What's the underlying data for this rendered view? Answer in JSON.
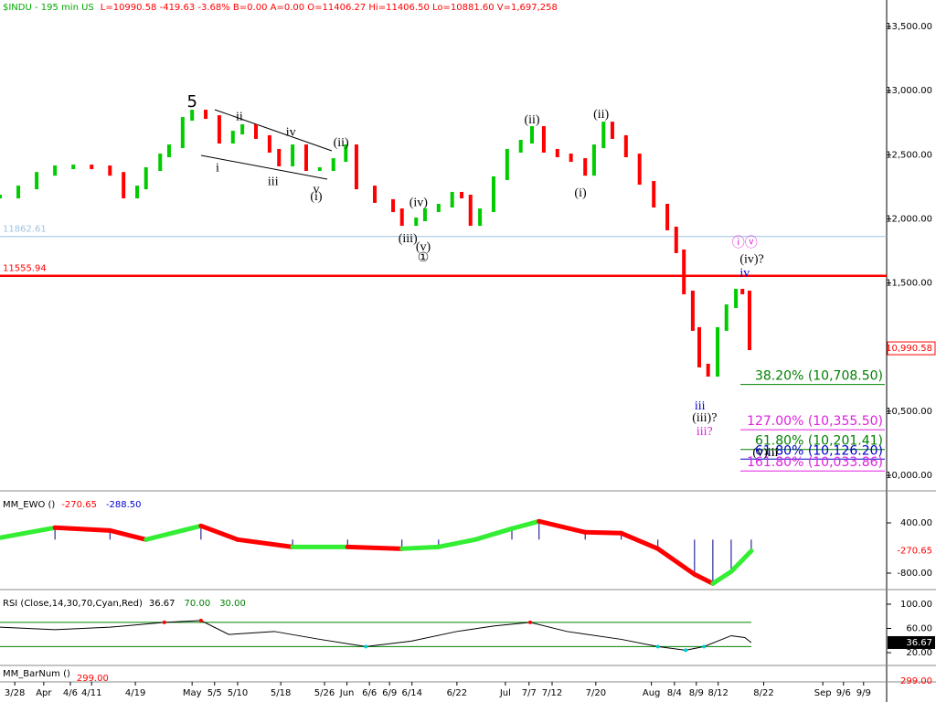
{
  "chart_data": [
    {
      "type": "price",
      "name": "$INDU - 195 min  US",
      "header": "L=10990.58 -419.63 -3.68%  B=0.00  A=0.00  O=11406.27  Hi=11406.50  Lo=10881.60  V=1,697,258",
      "xlim": [
        0,
        150
      ],
      "ylim": [
        9893,
        13707
      ],
      "xticks": [
        {
          "value": 2.5,
          "label": "3/28"
        },
        {
          "value": 7.4,
          "label": "Apr"
        },
        {
          "value": 11.9,
          "label": "4/6"
        },
        {
          "value": 15.5,
          "label": "4/11"
        },
        {
          "value": 22.9,
          "label": "4/19"
        },
        {
          "value": 32.5,
          "label": "May"
        },
        {
          "value": 36.3,
          "label": "5/5"
        },
        {
          "value": 40.2,
          "label": "5/10"
        },
        {
          "value": 47.5,
          "label": "5/18"
        },
        {
          "value": 54.9,
          "label": "5/26"
        },
        {
          "value": 58.7,
          "label": "Jun"
        },
        {
          "value": 62.5,
          "label": "6/6"
        },
        {
          "value": 65.9,
          "label": "6/9"
        },
        {
          "value": 69.7,
          "label": "6/14"
        },
        {
          "value": 77.3,
          "label": "6/22"
        },
        {
          "value": 85.5,
          "label": "Jul"
        },
        {
          "value": 89.5,
          "label": "7/7"
        },
        {
          "value": 93.4,
          "label": "7/12"
        },
        {
          "value": 100.8,
          "label": "7/20"
        },
        {
          "value": 110.2,
          "label": "Aug"
        },
        {
          "value": 114.1,
          "label": "8/4"
        },
        {
          "value": 117.8,
          "label": "8/9"
        },
        {
          "value": 121.5,
          "label": "8/12"
        },
        {
          "value": 129.2,
          "label": "8/22"
        },
        {
          "value": 139.2,
          "label": "Sep"
        },
        {
          "value": 142.7,
          "label": "9/6"
        },
        {
          "value": 146.1,
          "label": "9/9"
        }
      ],
      "yticks": [
        {
          "value": 13500,
          "label": "13,500.00"
        },
        {
          "value": 13000,
          "label": "13,000.00"
        },
        {
          "value": 12500,
          "label": "12,500.00"
        },
        {
          "value": 12000,
          "label": "12,000.00"
        },
        {
          "value": 11500,
          "label": "11,500.00"
        },
        {
          "value": 10500,
          "label": "10,500.00"
        },
        {
          "value": 10000,
          "label": "10,000.00"
        }
      ],
      "last_label": "10,990.58",
      "up_color": "#00cc00",
      "down_color": "#ff0000",
      "x": [
        0,
        3.1,
        6.2,
        9.3,
        12.4,
        15.5,
        18.6,
        20.9,
        23.2,
        24.7,
        27.1,
        28.6,
        30.9,
        32.5,
        34.8,
        37.1,
        39.4,
        41,
        43.3,
        45.6,
        47.2,
        49.5,
        51.8,
        54.1,
        56.4,
        58.5,
        60.3,
        63.4,
        66.5,
        68,
        70.4,
        71.9,
        74.2,
        76.5,
        78.1,
        79.6,
        81.2,
        83.5,
        85.8,
        88.1,
        90,
        92,
        94.3,
        96.6,
        99,
        100.5,
        102.1,
        103.6,
        105.9,
        108.2,
        110.6,
        112.9,
        114.4,
        115.7,
        117.2,
        118.3,
        119.8,
        121.4,
        122.9,
        124.5,
        125.6,
        126.8
      ],
      "values": [
        12174,
        12245,
        12351,
        12402,
        12409,
        12402,
        12351,
        12174,
        12245,
        12388,
        12495,
        12566,
        12780,
        12837,
        12794,
        12602,
        12673,
        12723,
        12638,
        12531,
        12424,
        12566,
        12388,
        12388,
        12459,
        12566,
        12245,
        12139,
        12067,
        11960,
        11996,
        12067,
        12103,
        12196,
        12174,
        11960,
        12067,
        12317,
        12531,
        12602,
        12709,
        12531,
        12495,
        12459,
        12351,
        12566,
        12744,
        12638,
        12495,
        12281,
        12103,
        11925,
        11747,
        11426,
        11141,
        10856,
        10784,
        11141,
        11319,
        11440,
        11426,
        10990.58
      ],
      "hlines": [
        {
          "value": 11862.61,
          "label": "11862.61",
          "color": "#9ec3e0"
        },
        {
          "value": 11555.94,
          "label": "11555.94",
          "color": "#ff0000"
        }
      ],
      "levels": [
        {
          "value": 10708.5,
          "label": "38.20% (10,708.50)",
          "color": "#008000"
        },
        {
          "value": 10355.5,
          "label": "127.00% (10,355.50)",
          "color": "#e020e0"
        },
        {
          "value": 10201.41,
          "label": "61.80% (10,201.41)",
          "color": "#008000"
        },
        {
          "value": 10126.2,
          "label": "61.80% (10,126.20)",
          "color": "#0000cc"
        },
        {
          "value": 10033.86,
          "label": "161.80% (10,033.86)",
          "color": "#e020e0"
        }
      ],
      "annotations": [
        {
          "text": "5",
          "x": 32.5,
          "y": 12908,
          "color": "#000000"
        },
        {
          "text": "ii",
          "x": 40.5,
          "y": 12794,
          "color": "#000000"
        },
        {
          "text": "iv",
          "x": 49.2,
          "y": 12673,
          "color": "#000000"
        },
        {
          "text": "(ii)",
          "x": 57.7,
          "y": 12588,
          "color": "#000000"
        },
        {
          "text": "i",
          "x": 36.8,
          "y": 12395,
          "color": "#000000"
        },
        {
          "text": "iii",
          "x": 46.2,
          "y": 12288,
          "color": "#000000"
        },
        {
          "text": "v",
          "x": 53.5,
          "y": 12224,
          "color": "#000000"
        },
        {
          "text": "(i)",
          "x": 53.5,
          "y": 12167,
          "color": "#000000"
        },
        {
          "text": "(iv)",
          "x": 70.8,
          "y": 12124,
          "color": "#000000"
        },
        {
          "text": "(iii)",
          "x": 69,
          "y": 11839,
          "color": "#000000"
        },
        {
          "text": "(v)",
          "x": 71.6,
          "y": 11775,
          "color": "#000000"
        },
        {
          "text": "①",
          "x": 71.6,
          "y": 11690,
          "color": "#000000"
        },
        {
          "text": "(ii)",
          "x": 90,
          "y": 12766,
          "color": "#000000"
        },
        {
          "text": "(ii)",
          "x": 101.7,
          "y": 12809,
          "color": "#000000"
        },
        {
          "text": "(i)",
          "x": 98.2,
          "y": 12196,
          "color": "#000000"
        },
        {
          "text": "ⓘⓥ",
          "x": 126,
          "y": 11804,
          "color": "#e020e0"
        },
        {
          "text": "(iv)?",
          "x": 127.2,
          "y": 11682,
          "color": "#000000"
        },
        {
          "text": "iv",
          "x": 126,
          "y": 11575,
          "color": "#0000cc"
        },
        {
          "text": "iii",
          "x": 118.4,
          "y": 10535,
          "color": "#0000cc"
        },
        {
          "text": "(iii)?",
          "x": 119.2,
          "y": 10442,
          "color": "#000000"
        },
        {
          "text": "iii?",
          "x": 119.2,
          "y": 10335,
          "color": "#e020e0"
        },
        {
          "text": "(v)iii",
          "x": 129.5,
          "y": 10171,
          "color": "#000000"
        }
      ]
    },
    {
      "type": "line",
      "name": "MM_EWO ()",
      "readouts": [
        "-270.65",
        "-288.50"
      ],
      "readout_colors": [
        "#ff0000",
        "#0000cc"
      ],
      "xlim": [
        0,
        150
      ],
      "ylim": [
        -1193,
        1098
      ],
      "yticks": [
        {
          "value": 400,
          "label": "400.00"
        },
        {
          "value": -800,
          "label": "-800.00"
        }
      ],
      "rise_color": "#33ee33",
      "fall_color": "#ff0000",
      "bar_color": "#000088",
      "x": [
        0,
        9.3,
        18.6,
        24.7,
        34,
        40.2,
        49.5,
        58.8,
        68,
        74.2,
        80.4,
        86.6,
        91.2,
        99,
        105.1,
        111.3,
        117.5,
        120.6,
        123.7,
        127.1
      ],
      "values": [
        44,
        284,
        218,
        0,
        327,
        0,
        -175,
        -175,
        -218,
        -175,
        0,
        262,
        437,
        175,
        153,
        -218,
        -830,
        -1048,
        -764,
        -270.65
      ]
    },
    {
      "type": "line",
      "name": "RSI (Close,14,30,70,Cyan,Red)",
      "readouts": [
        "36.67"
      ],
      "readout_colors": [
        "#000000"
      ],
      "xlim": [
        0,
        150
      ],
      "ylim": [
        -1.1,
        119.6
      ],
      "yticks": [
        {
          "value": 100,
          "label": "100.00"
        },
        {
          "value": 60,
          "label": "60.00"
        },
        {
          "value": 20,
          "label": "20.00"
        }
      ],
      "bands": [
        {
          "value": 70,
          "label": "70.00"
        },
        {
          "value": 30,
          "label": "30.00"
        }
      ],
      "band_color": "#008000",
      "color": "#000000",
      "over_color": "#ff0000",
      "under_color": "#00cccc",
      "x": [
        0,
        9.3,
        18.6,
        27.8,
        34,
        38.7,
        46.4,
        54.1,
        61.9,
        69.6,
        77.3,
        83.5,
        89.7,
        95.9,
        105.1,
        111.3,
        116,
        119.1,
        123.7,
        126,
        127.1
      ],
      "values": [
        62,
        58,
        62,
        70,
        73,
        50,
        55,
        42,
        30,
        39,
        55,
        64,
        70,
        55,
        42,
        30,
        24,
        30,
        48,
        45,
        36.67
      ]
    },
    {
      "type": "indicator",
      "name": "MM_BarNum ()",
      "readouts": [
        "299.00"
      ],
      "readout_colors": [
        "#ff0000"
      ]
    }
  ]
}
